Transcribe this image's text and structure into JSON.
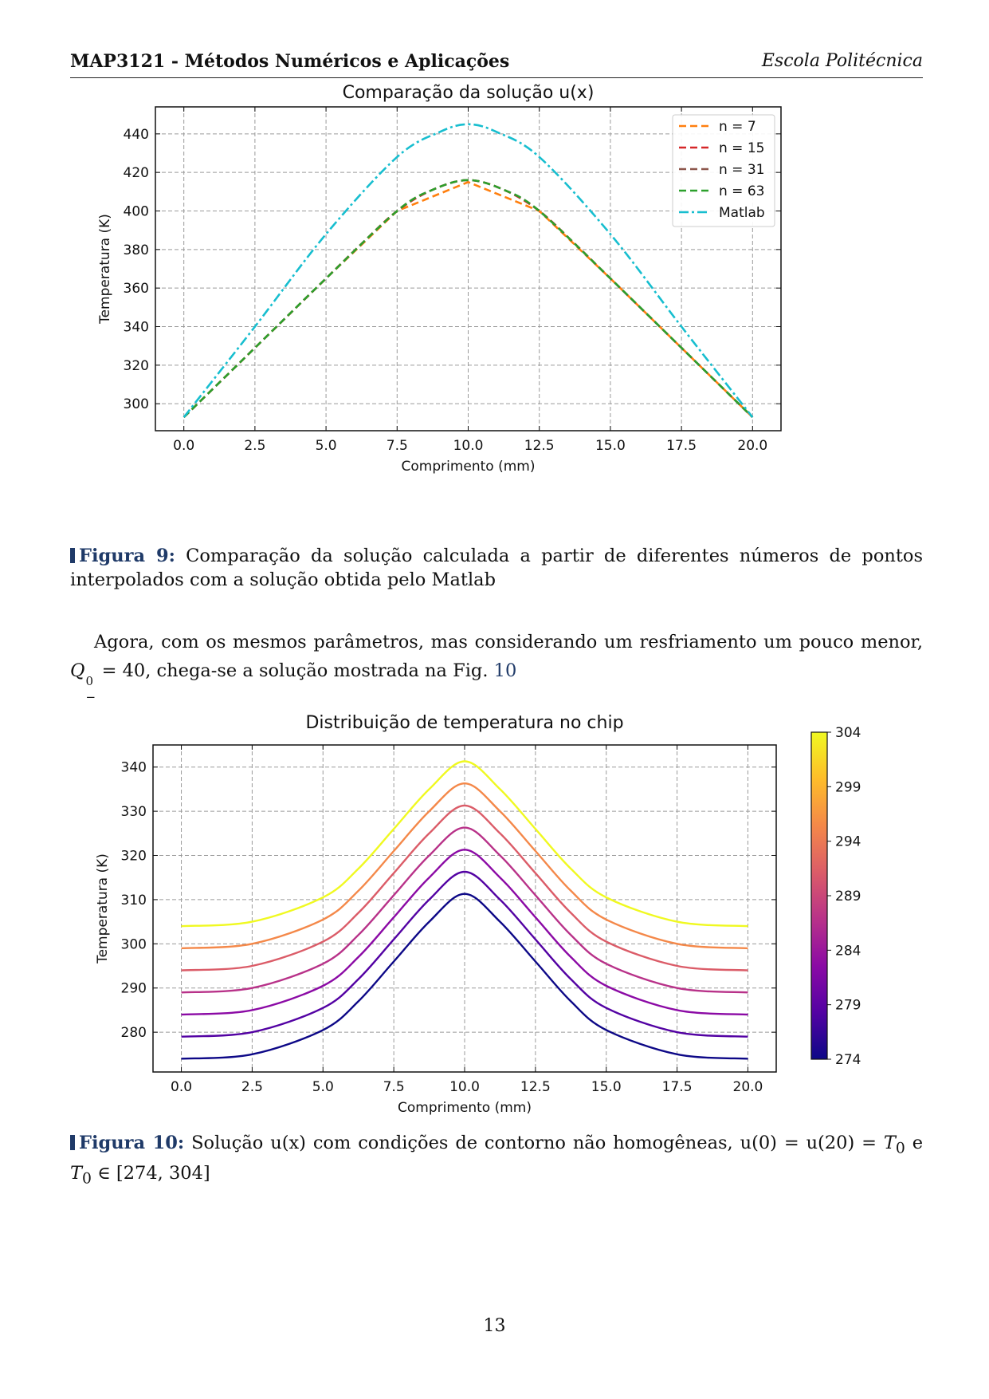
{
  "header": {
    "course": "MAP3121 - Métodos Numéricos e Aplicações",
    "school": "Escola Politécnica"
  },
  "fig9": {
    "label": "Figura 9:",
    "caption": "Comparação da solução calculada a partir de diferentes números de pontos interpolados com a solução obtida pelo Matlab"
  },
  "paragraph": {
    "text_before": "Agora, com os mesmos parâmetros, mas considerando um resfriamento um pouco menor,",
    "symbol": "Q",
    "sup": "0",
    "sub": "−",
    "text_eq": " = 40, chega-se a solução mostrada na Fig. ",
    "ref": "10"
  },
  "fig10": {
    "label": "Figura 10:",
    "caption_a": "Solução u(x) com condições de contorno não homogêneas, u(0) = u(20) = ",
    "caption_t": "T",
    "caption_sub": "0",
    "caption_b": " e ",
    "caption_c": " ∈ [274, 304]"
  },
  "page_number": "13",
  "chart_data": [
    {
      "type": "line",
      "title": "Comparação da solução u(x)",
      "xlabel": "Comprimento (mm)",
      "ylabel": "Temperatura (K)",
      "xlim": [
        -1,
        21
      ],
      "ylim": [
        286,
        454
      ],
      "xticks": [
        "0.0",
        "2.5",
        "5.0",
        "7.5",
        "10.0",
        "12.5",
        "15.0",
        "17.5",
        "20.0"
      ],
      "yticks": [
        "300",
        "320",
        "340",
        "360",
        "380",
        "400",
        "420",
        "440"
      ],
      "grid": true,
      "legend_position": "top-right",
      "series": [
        {
          "name": "n = 7",
          "color": "#ff7f0e",
          "style": "dashed",
          "x": [
            0,
            2.5,
            5,
            7.5,
            10,
            12.5,
            15,
            17.5,
            20
          ],
          "y": [
            293,
            329,
            365,
            400,
            415,
            400,
            365,
            329,
            293
          ]
        },
        {
          "name": "n = 15",
          "color": "#d62728",
          "style": "dashed",
          "x": [
            0,
            1.25,
            2.5,
            3.75,
            5,
            6.25,
            7.5,
            8.75,
            10,
            11.25,
            12.5,
            13.75,
            15,
            16.25,
            17.5,
            18.75,
            20
          ],
          "y": [
            293,
            311,
            329,
            347,
            365,
            383,
            400,
            411,
            416,
            411,
            400,
            383,
            365,
            347,
            329,
            311,
            293
          ]
        },
        {
          "name": "n = 31",
          "color": "#8c564b",
          "style": "dashed",
          "x": [
            0,
            2.5,
            5,
            7.5,
            8.75,
            10,
            11.25,
            12.5,
            15,
            17.5,
            20
          ],
          "y": [
            293,
            329,
            365,
            400,
            411,
            416,
            411,
            400,
            365,
            329,
            293
          ]
        },
        {
          "name": "n = 63",
          "color": "#2ca02c",
          "style": "dashed",
          "x": [
            0,
            2.5,
            5,
            7.5,
            8.75,
            10,
            11.25,
            12.5,
            15,
            17.5,
            20
          ],
          "y": [
            293,
            329,
            365,
            400,
            411,
            416,
            411,
            400,
            365,
            329,
            293
          ]
        },
        {
          "name": "Matlab",
          "color": "#17becf",
          "style": "dashdot",
          "x": [
            0,
            2.5,
            5,
            7.5,
            9,
            10,
            11,
            12.5,
            15,
            17.5,
            20
          ],
          "y": [
            293,
            340,
            388,
            428,
            441,
            445,
            441,
            428,
            388,
            340,
            293
          ]
        }
      ]
    },
    {
      "type": "line",
      "title": "Distribuição de temperatura no chip",
      "xlabel": "Comprimento (mm)",
      "ylabel": "Temperatura (K)",
      "xlim": [
        -1,
        21
      ],
      "ylim": [
        271,
        345
      ],
      "xticks": [
        "0.0",
        "2.5",
        "5.0",
        "7.5",
        "10.0",
        "12.5",
        "15.0",
        "17.5",
        "20.0"
      ],
      "yticks": [
        "280",
        "290",
        "300",
        "310",
        "320",
        "330",
        "340"
      ],
      "grid": true,
      "colorbar": {
        "min": 274,
        "max": 304,
        "ticks": [
          "274",
          "279",
          "284",
          "289",
          "294",
          "299",
          "304"
        ]
      },
      "x": [
        0,
        2.5,
        5,
        6.25,
        7.5,
        8.75,
        10,
        11.25,
        12.5,
        13.75,
        15,
        17.5,
        20
      ],
      "series": [
        {
          "T0": 274,
          "color": "#0d0887",
          "y": [
            274,
            275,
            280.5,
            287,
            296,
            305,
            311.3,
            305,
            296,
            287,
            280.5,
            275,
            274
          ]
        },
        {
          "T0": 279,
          "color": "#5302a3",
          "y": [
            279,
            280,
            285.5,
            292,
            301,
            310,
            316.3,
            310,
            301,
            292,
            285.5,
            280,
            279
          ]
        },
        {
          "T0": 284,
          "color": "#8b0aa5",
          "y": [
            284,
            285,
            290.5,
            297,
            306,
            315,
            321.3,
            315,
            306,
            297,
            290.5,
            285,
            284
          ]
        },
        {
          "T0": 289,
          "color": "#b83289",
          "y": [
            289,
            290,
            295.5,
            302,
            311,
            320,
            326.3,
            320,
            311,
            302,
            295.5,
            290,
            289
          ]
        },
        {
          "T0": 294,
          "color": "#db5c68",
          "y": [
            294,
            295,
            300.5,
            307,
            316,
            325,
            331.3,
            325,
            316,
            307,
            300.5,
            295,
            294
          ]
        },
        {
          "T0": 299,
          "color": "#f48849",
          "y": [
            299,
            300,
            305.5,
            312,
            321,
            330,
            336.3,
            330,
            321,
            312,
            305.5,
            300,
            299
          ]
        },
        {
          "T0": 304,
          "color": "#f0f921",
          "y": [
            304,
            305,
            310.5,
            317,
            326,
            335,
            341.3,
            335,
            326,
            317,
            310.5,
            305,
            304
          ]
        }
      ]
    }
  ]
}
